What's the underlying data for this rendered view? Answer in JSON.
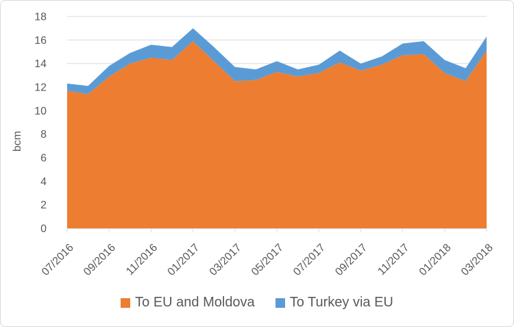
{
  "y_axis_title": "bcm",
  "legend": {
    "items": [
      {
        "label": "To EU and Moldova",
        "color": "#ED7D31"
      },
      {
        "label": "To Turkey via EU",
        "color": "#5B9BD5"
      }
    ]
  },
  "chart_data": {
    "type": "area",
    "stacked": true,
    "title": "",
    "ylabel": "bcm",
    "ylim": [
      0,
      18
    ],
    "ytick_step": 2,
    "xtick_every": 2,
    "grid": "horizontal",
    "legend_position": "bottom",
    "text_color": "#595959",
    "grid_color": "#D9D9D9",
    "axis_color": "#D9D9D9",
    "x": [
      "07/2016",
      "08/2016",
      "09/2016",
      "10/2016",
      "11/2016",
      "12/2016",
      "01/2017",
      "02/2017",
      "03/2017",
      "04/2017",
      "05/2017",
      "06/2017",
      "07/2017",
      "08/2017",
      "09/2017",
      "10/2017",
      "11/2017",
      "12/2017",
      "01/2018",
      "02/2018",
      "03/2018"
    ],
    "visible_x_tick_labels": [
      "07/2016",
      "09/2016",
      "11/2016",
      "01/2017",
      "03/2017",
      "05/2017",
      "07/2017",
      "09/2017",
      "11/2017",
      "01/2018",
      "03/2018"
    ],
    "series": [
      {
        "name": "To EU and Moldova",
        "color": "#ED7D31",
        "values": [
          11.7,
          11.4,
          12.9,
          14.0,
          14.5,
          14.3,
          15.9,
          14.2,
          12.5,
          12.6,
          13.3,
          12.9,
          13.2,
          14.1,
          13.4,
          13.9,
          14.7,
          14.8,
          13.2,
          12.5,
          15.1
        ]
      },
      {
        "name": "To Turkey via EU",
        "color": "#5B9BD5",
        "values": [
          0.6,
          0.7,
          0.9,
          0.9,
          1.1,
          1.1,
          1.1,
          1.2,
          1.2,
          0.9,
          0.9,
          0.6,
          0.7,
          1.0,
          0.6,
          0.7,
          1.0,
          1.1,
          1.1,
          1.1,
          1.2
        ]
      }
    ]
  }
}
